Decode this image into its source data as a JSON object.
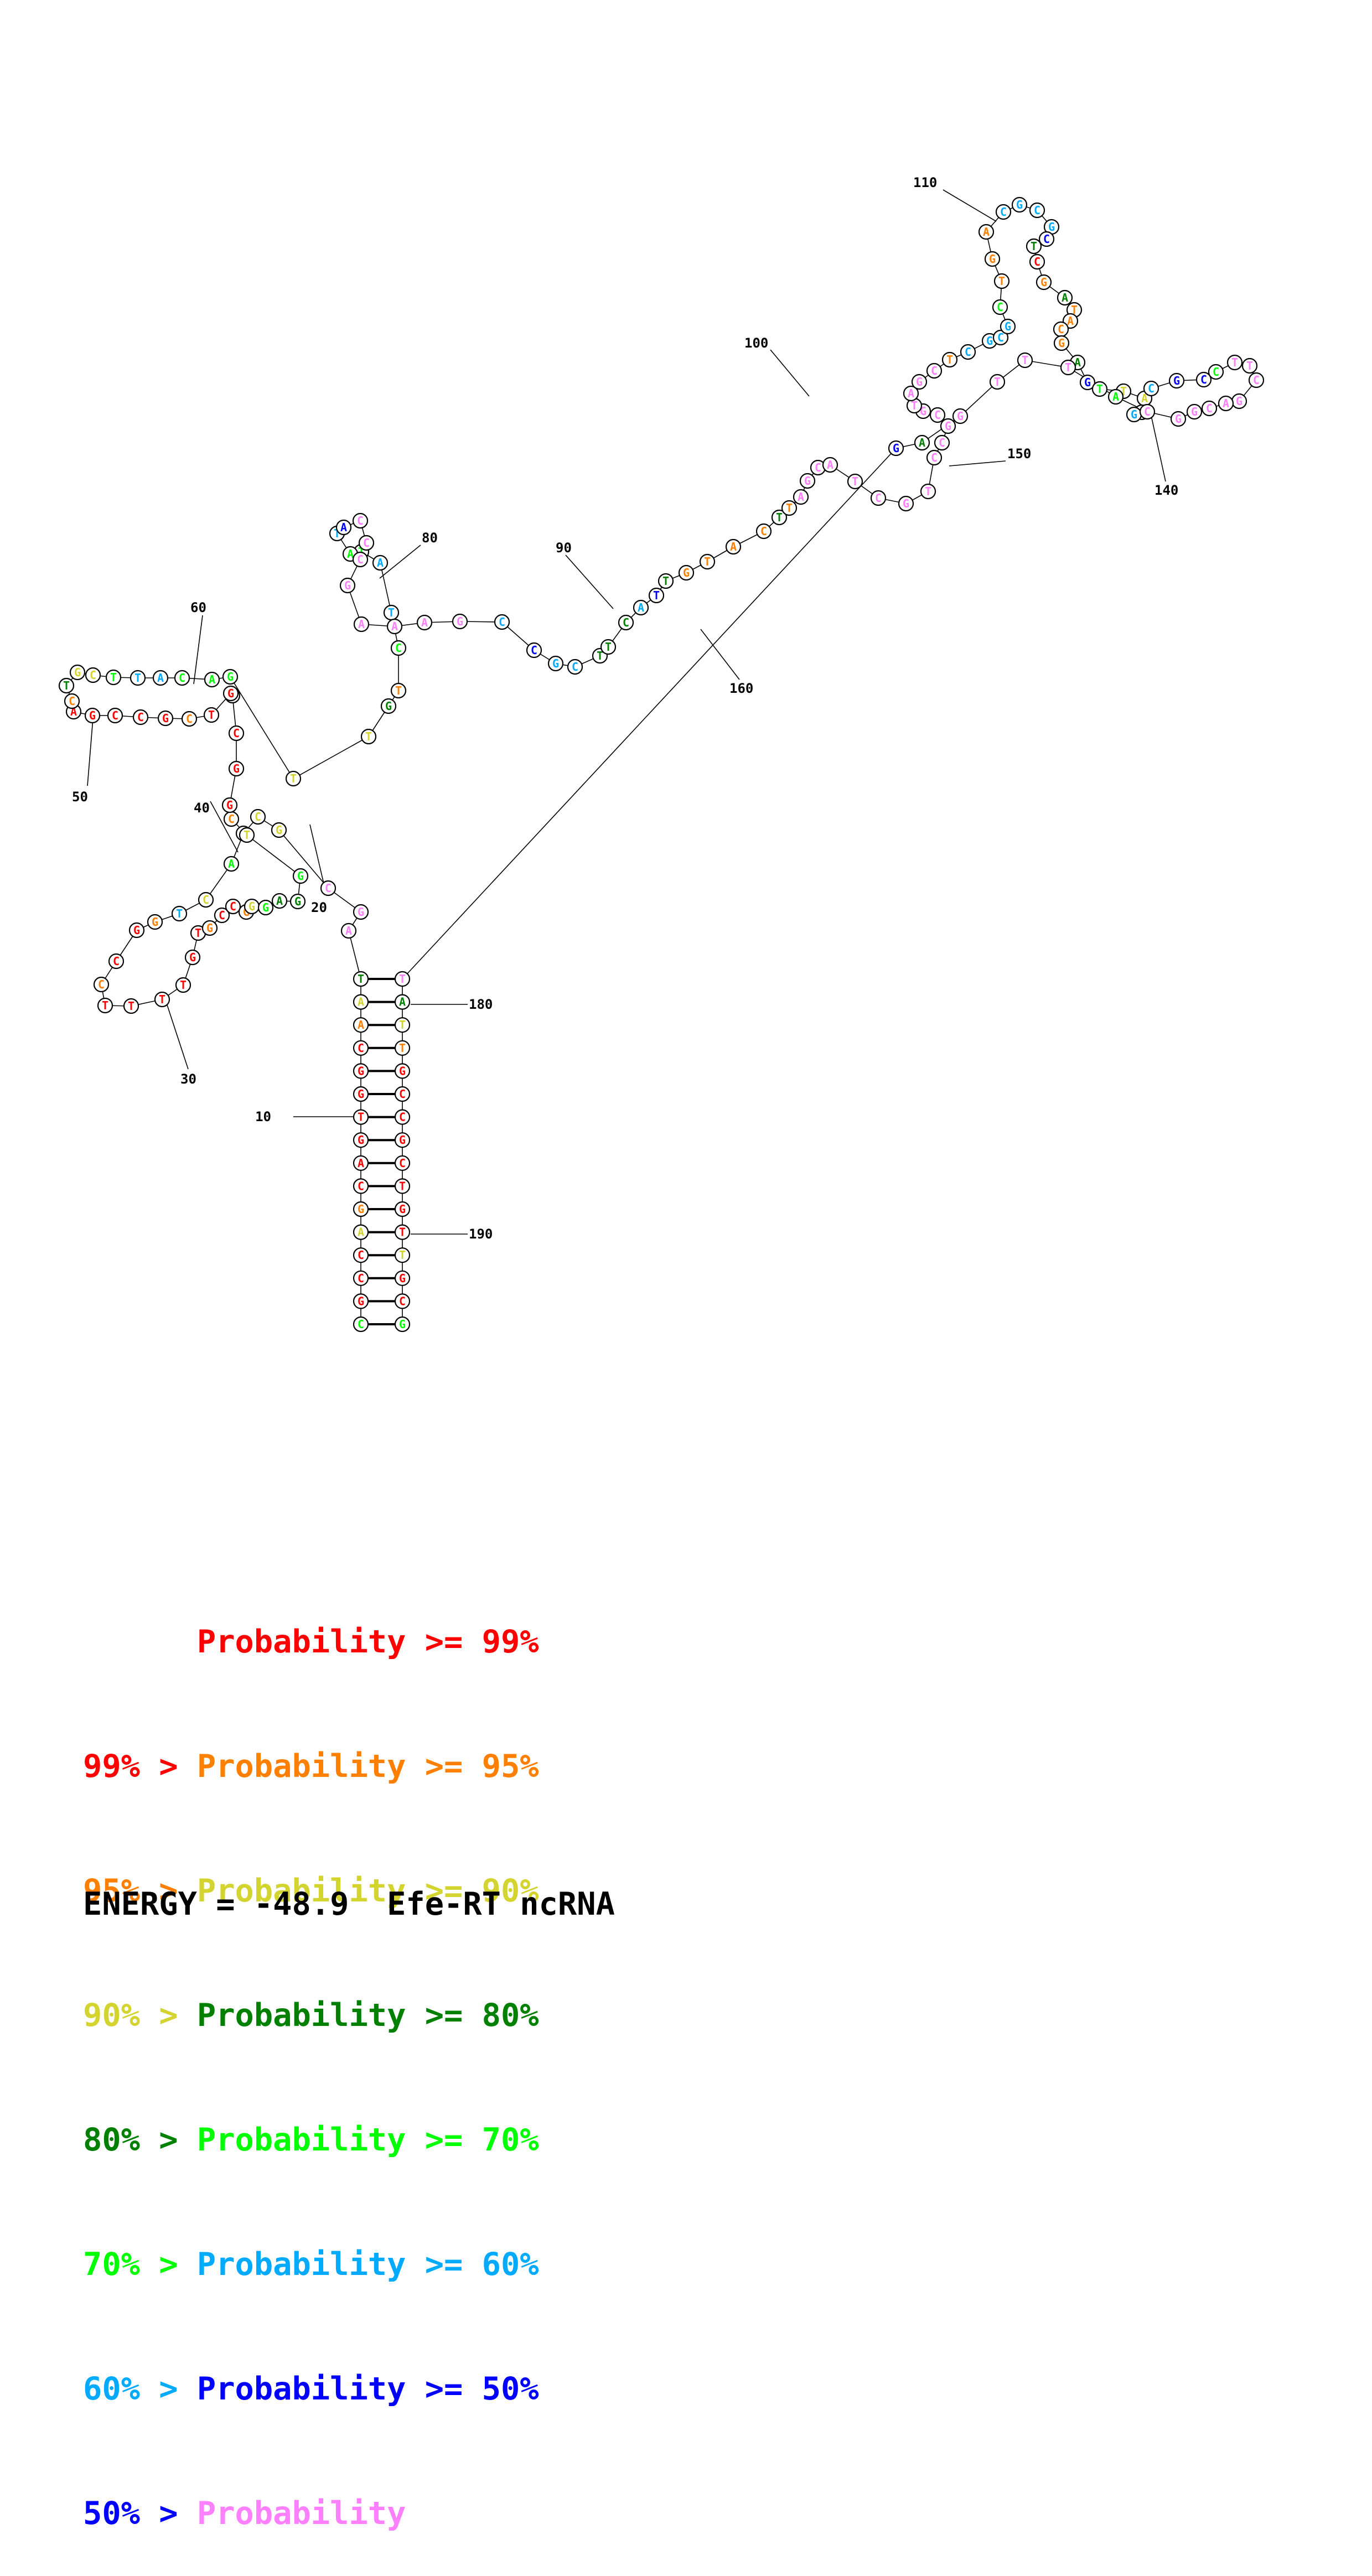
{
  "legend": {
    "colors": [
      "#ff0000",
      "#ff8000",
      "#d4d431",
      "#008000",
      "#00ff00",
      "#00aaff",
      "#0000ff",
      "#ff80ff"
    ],
    "rows": [
      {
        "prefix": "",
        "main": "Probability >= 99%"
      },
      {
        "prefix": "99% > ",
        "main": "Probability >= 95%"
      },
      {
        "prefix": "95% > ",
        "main": "Probability >= 90%"
      },
      {
        "prefix": "90% > ",
        "main": "Probability >= 80%"
      },
      {
        "prefix": "80% > ",
        "main": "Probability >= 70%"
      },
      {
        "prefix": "70% > ",
        "main": "Probability >= 60%"
      },
      {
        "prefix": "60% > ",
        "main": "Probability >= 50%"
      },
      {
        "prefix": "50% > ",
        "main": "Probability"
      }
    ]
  },
  "footer": {
    "energy_label": "ENERGY = -48.9",
    "name": "Efe-RT ncRNA"
  },
  "position_labels": [
    "10",
    "20",
    "30",
    "40",
    "50",
    "60",
    "80",
    "90",
    "100",
    "110",
    "140",
    "150",
    "160",
    "180",
    "190"
  ],
  "nucleotides": [
    {
      "b": "C",
      "p": 4
    },
    {
      "b": "G",
      "p": 0
    },
    {
      "b": "C",
      "p": 0
    },
    {
      "b": "C",
      "p": 0
    },
    {
      "b": "A",
      "p": 2
    },
    {
      "b": "G",
      "p": 1
    },
    {
      "b": "C",
      "p": 0
    },
    {
      "b": "A",
      "p": 0
    },
    {
      "b": "G",
      "p": 0
    },
    {
      "b": "T",
      "p": 0
    },
    {
      "b": "G",
      "p": 0
    },
    {
      "b": "G",
      "p": 0
    },
    {
      "b": "C",
      "p": 0
    },
    {
      "b": "A",
      "p": 1
    },
    {
      "b": "A",
      "p": 2
    },
    {
      "b": "T",
      "p": 3
    },
    {
      "b": "A",
      "p": 7
    },
    {
      "b": "G",
      "p": 7
    },
    {
      "b": "C",
      "p": 7
    },
    {
      "b": "G",
      "p": 2
    },
    {
      "b": "C",
      "p": 2
    },
    {
      "b": "A",
      "p": 2
    },
    {
      "b": "A",
      "p": 4
    },
    {
      "b": "C",
      "p": 2
    },
    {
      "b": "T",
      "p": 5
    },
    {
      "b": "G",
      "p": 1
    },
    {
      "b": "G",
      "p": 0
    },
    {
      "b": "C",
      "p": 0
    },
    {
      "b": "C",
      "p": 1
    },
    {
      "b": "T",
      "p": 0
    },
    {
      "b": "T",
      "p": 0
    },
    {
      "b": "T",
      "p": 0
    },
    {
      "b": "T",
      "p": 0
    },
    {
      "b": "G",
      "p": 0
    },
    {
      "b": "T",
      "p": 0
    },
    {
      "b": "G",
      "p": 1
    },
    {
      "b": "C",
      "p": 0
    },
    {
      "b": "C",
      "p": 0
    },
    {
      "b": "G",
      "p": 1
    },
    {
      "b": "G",
      "p": 2
    },
    {
      "b": "G",
      "p": 4
    },
    {
      "b": "A",
      "p": 3
    },
    {
      "b": "G",
      "p": 3
    },
    {
      "b": "G",
      "p": 4
    },
    {
      "b": "T",
      "p": 2
    },
    {
      "b": "C",
      "p": 1
    },
    {
      "b": "G",
      "p": 0
    },
    {
      "b": "G",
      "p": 0
    },
    {
      "b": "C",
      "p": 0
    },
    {
      "b": "A",
      "p": 0
    },
    {
      "b": "G",
      "p": 0
    },
    {
      "b": "T",
      "p": 0
    },
    {
      "b": "C",
      "p": 1
    },
    {
      "b": "G",
      "p": 0
    },
    {
      "b": "C",
      "p": 0
    },
    {
      "b": "C",
      "p": 0
    },
    {
      "b": "G",
      "p": 0
    },
    {
      "b": "A",
      "p": 0
    },
    {
      "b": "C",
      "p": 1
    },
    {
      "b": "T",
      "p": 3
    },
    {
      "b": "G",
      "p": 2
    },
    {
      "b": "C",
      "p": 2
    },
    {
      "b": "T",
      "p": 4
    },
    {
      "b": "T",
      "p": 5
    },
    {
      "b": "A",
      "p": 5
    },
    {
      "b": "C",
      "p": 4
    },
    {
      "b": "A",
      "p": 4
    },
    {
      "b": "G",
      "p": 4
    },
    {
      "b": "T",
      "p": 2
    },
    {
      "b": "T",
      "p": 2
    },
    {
      "b": "G",
      "p": 3
    },
    {
      "b": "T",
      "p": 1
    },
    {
      "b": "C",
      "p": 4
    },
    {
      "b": "T",
      "p": 5
    },
    {
      "b": "A",
      "p": 5
    },
    {
      "b": "T",
      "p": 4
    },
    {
      "b": "A",
      "p": 4
    },
    {
      "b": "T",
      "p": 5
    },
    {
      "b": "A",
      "p": 6
    },
    {
      "b": "C",
      "p": 7
    },
    {
      "b": "C",
      "p": 7
    },
    {
      "b": "C",
      "p": 7
    },
    {
      "b": "G",
      "p": 7
    },
    {
      "b": "A",
      "p": 7
    },
    {
      "b": "A",
      "p": 7
    },
    {
      "b": "A",
      "p": 7
    },
    {
      "b": "G",
      "p": 7
    },
    {
      "b": "C",
      "p": 5
    },
    {
      "b": "C",
      "p": 6
    },
    {
      "b": "G",
      "p": 5
    },
    {
      "b": "C",
      "p": 5
    },
    {
      "b": "T",
      "p": 3
    },
    {
      "b": "T",
      "p": 3
    },
    {
      "b": "C",
      "p": 3
    },
    {
      "b": "A",
      "p": 5
    },
    {
      "b": "T",
      "p": 6
    },
    {
      "b": "T",
      "p": 3
    },
    {
      "b": "G",
      "p": 1
    },
    {
      "b": "T",
      "p": 1
    },
    {
      "b": "A",
      "p": 1
    },
    {
      "b": "C",
      "p": 1
    },
    {
      "b": "T",
      "p": 3
    },
    {
      "b": "T",
      "p": 1
    },
    {
      "b": "A",
      "p": 7
    },
    {
      "b": "G",
      "p": 7
    },
    {
      "b": "C",
      "p": 7
    },
    {
      "b": "A",
      "p": 7
    },
    {
      "b": "T",
      "p": 7
    },
    {
      "b": "C",
      "p": 7
    },
    {
      "b": "G",
      "p": 7
    },
    {
      "b": "T",
      "p": 7
    },
    {
      "b": "C",
      "p": 7
    },
    {
      "b": "C",
      "p": 7
    },
    {
      "b": "G",
      "p": 7
    },
    {
      "b": "C",
      "p": 7
    },
    {
      "b": "G",
      "p": 7
    },
    {
      "b": "T",
      "p": 7
    },
    {
      "b": "A",
      "p": 7
    },
    {
      "b": "G",
      "p": 7
    },
    {
      "b": "C",
      "p": 7
    },
    {
      "b": "T",
      "p": 1
    },
    {
      "b": "C",
      "p": 5
    },
    {
      "b": "G",
      "p": 5
    },
    {
      "b": "C",
      "p": 5
    },
    {
      "b": "G",
      "p": 5
    },
    {
      "b": "C",
      "p": 4
    },
    {
      "b": "T",
      "p": 1
    },
    {
      "b": "G",
      "p": 1
    },
    {
      "b": "A",
      "p": 1
    },
    {
      "b": "C",
      "p": 5
    },
    {
      "b": "G",
      "p": 5
    },
    {
      "b": "C",
      "p": 5
    },
    {
      "b": "G",
      "p": 5
    },
    {
      "b": "C",
      "p": 6
    },
    {
      "b": "T",
      "p": 3
    },
    {
      "b": "C",
      "p": 0
    },
    {
      "b": "G",
      "p": 1
    },
    {
      "b": "A",
      "p": 3
    },
    {
      "b": "T",
      "p": 1
    },
    {
      "b": "A",
      "p": 1
    },
    {
      "b": "C",
      "p": 1
    },
    {
      "b": "G",
      "p": 1
    },
    {
      "b": "A",
      "p": 3
    },
    {
      "b": "G",
      "p": 6
    },
    {
      "b": "T",
      "p": 4
    },
    {
      "b": "T",
      "p": 2
    },
    {
      "b": "A",
      "p": 2
    },
    {
      "b": "C",
      "p": 3
    },
    {
      "b": "G",
      "p": 5
    },
    {
      "b": "C",
      "p": 5
    },
    {
      "b": "G",
      "p": 6
    },
    {
      "b": "C",
      "p": 6
    },
    {
      "b": "C",
      "p": 4
    },
    {
      "b": "T",
      "p": 7
    },
    {
      "b": "T",
      "p": 7
    },
    {
      "b": "C",
      "p": 7
    },
    {
      "b": "G",
      "p": 7
    },
    {
      "b": "A",
      "p": 7
    },
    {
      "b": "C",
      "p": 7
    },
    {
      "b": "G",
      "p": 7
    },
    {
      "b": "G",
      "p": 7
    },
    {
      "b": "C",
      "p": 7
    },
    {
      "b": "A",
      "p": 4
    },
    {
      "b": "T",
      "p": 7
    },
    {
      "b": "T",
      "p": 7
    },
    {
      "b": "T",
      "p": 7
    },
    {
      "b": "G",
      "p": 7
    },
    {
      "b": "A",
      "p": 3
    },
    {
      "b": "G",
      "p": 6
    },
    {
      "b": "T",
      "p": 7
    },
    {
      "b": "A",
      "p": 3
    },
    {
      "b": "T",
      "p": 2
    },
    {
      "b": "T",
      "p": 1
    },
    {
      "b": "G",
      "p": 0
    },
    {
      "b": "C",
      "p": 0
    },
    {
      "b": "C",
      "p": 0
    },
    {
      "b": "G",
      "p": 0
    },
    {
      "b": "C",
      "p": 0
    },
    {
      "b": "T",
      "p": 0
    },
    {
      "b": "G",
      "p": 0
    },
    {
      "b": "T",
      "p": 0
    },
    {
      "b": "T",
      "p": 2
    },
    {
      "b": "G",
      "p": 0
    },
    {
      "b": "C",
      "p": 0
    },
    {
      "b": "G",
      "p": 4
    }
  ]
}
